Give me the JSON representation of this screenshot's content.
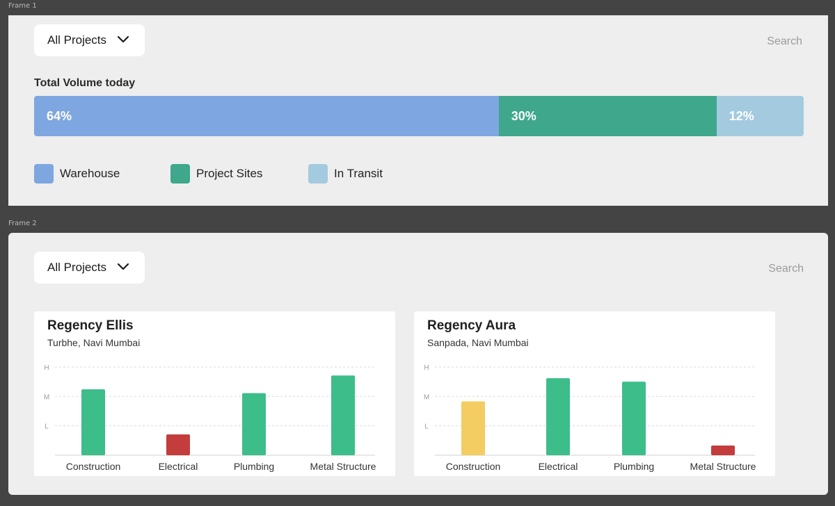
{
  "frames": [
    {
      "label": "Frame 1"
    },
    {
      "label": "Frame 2"
    }
  ],
  "frame1": {
    "dropdown": {
      "label": "All Projects",
      "icon": "chevron-down-icon"
    },
    "search": {
      "label": "Search"
    },
    "volume": {
      "title": "Total Volume today",
      "segments": [
        {
          "name": "Warehouse",
          "label": "64%",
          "color": "#7ea6e0"
        },
        {
          "name": "Project Sites",
          "label": "30%",
          "color": "#3ea78c"
        },
        {
          "name": "In Transit",
          "label": "12%",
          "color": "#a3cadf"
        }
      ]
    }
  },
  "frame2": {
    "dropdown": {
      "label": "All Projects",
      "icon": "chevron-down-icon"
    },
    "search": {
      "label": "Search"
    },
    "cards": [
      {
        "title": "Regency Ellis",
        "subtitle": "Turbhe, Navi Mumbai"
      },
      {
        "title": "Regency Aura",
        "subtitle": "Sanpada, Navi Mumbai"
      }
    ]
  },
  "chart_data": [
    {
      "type": "bar",
      "title": "Total Volume today",
      "orientation": "horizontal-stacked",
      "series": [
        {
          "name": "Warehouse",
          "values": [
            64
          ]
        },
        {
          "name": "Project Sites",
          "values": [
            30
          ]
        },
        {
          "name": "In Transit",
          "values": [
            12
          ]
        }
      ],
      "legend": "bottom"
    },
    {
      "type": "bar",
      "title": "Regency Ellis",
      "categories": [
        "Construction",
        "Electrical",
        "Plumbing",
        "Metal Structure"
      ],
      "values": [
        2.24,
        0.71,
        2.11,
        2.71
      ],
      "colors": [
        "#3dbd8a",
        "#c43d3d",
        "#3dbd8a",
        "#3dbd8a"
      ],
      "y_tick_labels": [
        "L",
        "M",
        "H"
      ],
      "ylim": [
        0,
        3
      ],
      "grid": true
    },
    {
      "type": "bar",
      "title": "Regency Aura",
      "categories": [
        "Construction",
        "Electrical",
        "Plumbing",
        "Metal Structure"
      ],
      "values": [
        1.83,
        2.62,
        2.5,
        0.33
      ],
      "colors": [
        "#f3cd62",
        "#3dbd8a",
        "#3dbd8a",
        "#c43d3d"
      ],
      "y_tick_labels": [
        "L",
        "M",
        "H"
      ],
      "ylim": [
        0,
        3
      ],
      "grid": true
    }
  ]
}
